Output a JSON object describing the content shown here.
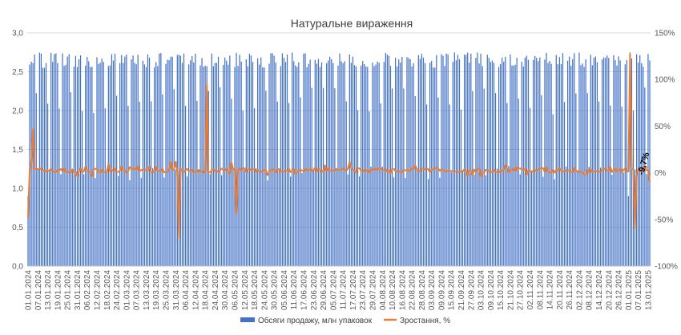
{
  "chart_data": {
    "type": "bar+line",
    "title": "Натуральне вираження",
    "y_left": {
      "min": 0,
      "max": 3,
      "ticks": [
        "0,0",
        "0,5",
        "1,0",
        "1,5",
        "2,0",
        "2,5",
        "3,0"
      ]
    },
    "y_right": {
      "min": -100,
      "max": 150,
      "ticks": [
        "-100%",
        "-50%",
        "0%",
        "50%",
        "100%",
        "150%"
      ]
    },
    "x_range": [
      "2024-01-01",
      "2025-01-14"
    ],
    "x_tick_labels": [
      "01.01.2024",
      "07.01.2024",
      "13.01.2024",
      "19.01.2024",
      "25.01.2024",
      "31.01.2024",
      "06.02.2024",
      "12.02.2024",
      "18.02.2024",
      "24.02.2024",
      "01.03.2024",
      "07.03.2024",
      "13.03.2024",
      "19.03.2024",
      "25.03.2024",
      "31.03.2024",
      "06.04.2024",
      "12.04.2024",
      "18.04.2024",
      "24.04.2024",
      "30.04.2024",
      "06.05.2024",
      "12.05.2024",
      "18.05.2024",
      "24.05.2024",
      "30.05.2024",
      "05.06.2024",
      "11.06.2024",
      "17.06.2024",
      "23.06.2024",
      "29.06.2024",
      "05.07.2024",
      "11.07.2024",
      "17.07.2024",
      "23.07.2024",
      "29.07.2024",
      "04.08.2024",
      "10.08.2024",
      "16.08.2024",
      "22.08.2024",
      "28.08.2024",
      "03.09.2024",
      "09.09.2024",
      "15.09.2024",
      "21.09.2024",
      "27.09.2024",
      "03.10.2024",
      "09.10.2024",
      "15.10.2024",
      "21.10.2024",
      "27.10.2024",
      "02.11.2024",
      "08.11.2024",
      "14.11.2024",
      "20.11.2024",
      "26.11.2024",
      "02.12.2024",
      "08.12.2024",
      "14.12.2024",
      "20.12.2024",
      "26.12.2024",
      "01.01.2025",
      "07.01.2025",
      "13.01.2025"
    ],
    "series": [
      {
        "name": "Обсяги продажу, млн упаковок",
        "kind": "bar",
        "axis": "left",
        "color": "#4472C4",
        "approx_profile": {
          "weekday_level": [
            2.55,
            2.75
          ],
          "sunday_level": [
            1.1,
            1.3
          ],
          "holiday_troughs": [
            "01.01.2024",
            "01.01.2025"
          ]
        }
      },
      {
        "name": "Зростання, %",
        "kind": "line",
        "axis": "right",
        "color": "#ED7D31",
        "baseline_pct": [
          0,
          5
        ],
        "spikes_pct": [
          {
            "date": "01.01.2024",
            "value": -48
          },
          {
            "date": "04.01.2024",
            "value": 48
          },
          {
            "date": "02.04.2024",
            "value": -70
          },
          {
            "date": "19.04.2024",
            "value": 95
          },
          {
            "date": "07.05.2024",
            "value": -44
          },
          {
            "date": "02.01.2025",
            "value": 127
          },
          {
            "date": "05.01.2025",
            "value": -60
          },
          {
            "date": "14.01.2025",
            "value": -9.7
          }
        ]
      }
    ],
    "annotation": {
      "text": "-9,7%"
    },
    "legend": {
      "position": "bottom",
      "entries": [
        "Обсяги продажу, млн упаковок",
        "Зростання, %"
      ]
    },
    "grid": {
      "horizontal": true,
      "color": "#d9d9d9"
    }
  }
}
